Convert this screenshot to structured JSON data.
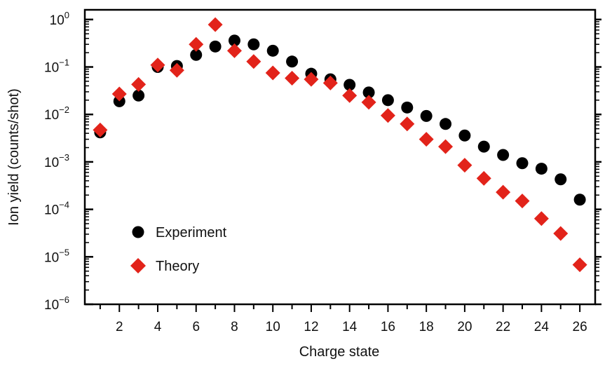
{
  "chart_data": {
    "type": "scatter",
    "title": "",
    "xlabel": "Charge state",
    "ylabel": "Ion yield (counts/shot)",
    "xlim": [
      0.2,
      26.8
    ],
    "ylim": [
      1e-06,
      1.6
    ],
    "yscale": "log",
    "x_ticks": [
      2,
      4,
      6,
      8,
      10,
      12,
      14,
      16,
      18,
      20,
      22,
      24,
      26
    ],
    "y_tick_exponents": [
      "0",
      "−1",
      "−2",
      "−3",
      "−4",
      "−5",
      "−6"
    ],
    "y_tick_base": "10",
    "grid": false,
    "legend_position": "bottom-left",
    "series": [
      {
        "name": "Experiment",
        "marker": "circle",
        "color": "#000000",
        "x": [
          1,
          2,
          3,
          4,
          5,
          6,
          7,
          8,
          9,
          10,
          11,
          12,
          13,
          14,
          15,
          16,
          17,
          18,
          19,
          20,
          21,
          22,
          23,
          24,
          25,
          26
        ],
        "y": [
          0.0042,
          0.019,
          0.025,
          0.1,
          0.105,
          0.18,
          0.27,
          0.36,
          0.3,
          0.22,
          0.13,
          0.072,
          0.055,
          0.042,
          0.029,
          0.02,
          0.014,
          0.0093,
          0.0063,
          0.0036,
          0.0021,
          0.0014,
          0.00094,
          0.00072,
          0.00043,
          0.00016
        ]
      },
      {
        "name": "Theory",
        "marker": "diamond",
        "color": "#e2231a",
        "x": [
          1,
          2,
          3,
          4,
          5,
          6,
          7,
          8,
          9,
          10,
          11,
          12,
          13,
          14,
          15,
          16,
          17,
          18,
          19,
          20,
          21,
          22,
          23,
          24,
          25,
          26
        ],
        "y": [
          0.0047,
          0.027,
          0.043,
          0.11,
          0.085,
          0.3,
          0.78,
          0.22,
          0.13,
          0.075,
          0.058,
          0.055,
          0.046,
          0.025,
          0.018,
          0.0095,
          0.0063,
          0.003,
          0.0021,
          0.00085,
          0.00045,
          0.00023,
          0.00015,
          6.4e-05,
          3.1e-05,
          6.8e-06
        ]
      }
    ]
  }
}
